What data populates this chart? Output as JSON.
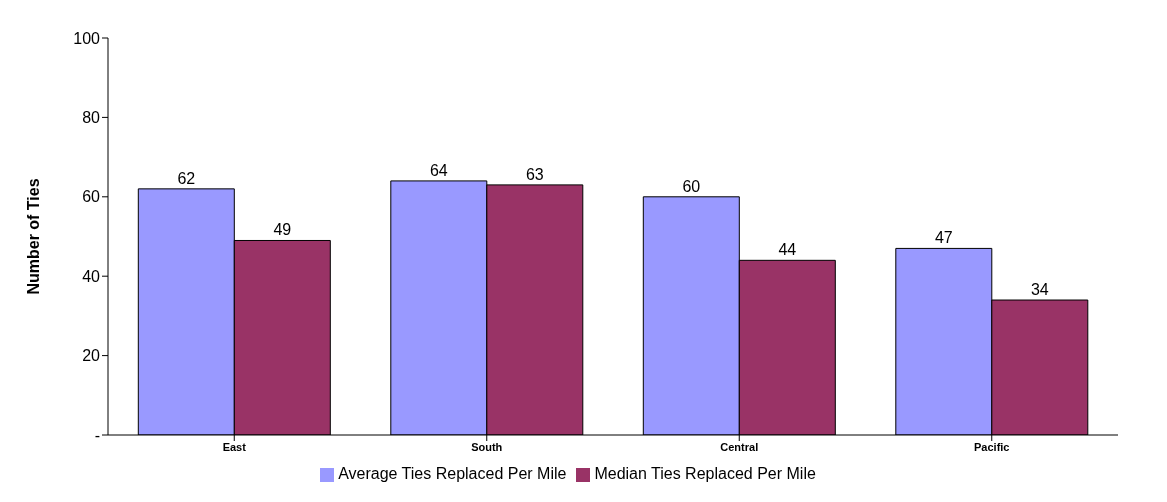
{
  "chart_data": {
    "type": "bar",
    "categories": [
      "East",
      "South",
      "Central",
      "Pacific"
    ],
    "series": [
      {
        "name": "Average Ties Replaced Per Mile",
        "color": "#9999ff",
        "values": [
          62,
          64,
          60,
          47
        ]
      },
      {
        "name": "Median Ties Replaced Per Mile",
        "color": "#993366",
        "values": [
          49,
          63,
          44,
          34
        ]
      }
    ],
    "ylabel": "Number of Ties",
    "ylim": [
      0,
      100
    ],
    "yticks": [
      {
        "value": 0,
        "label": "-"
      },
      20,
      40,
      60,
      80,
      100
    ],
    "data_labels": true,
    "legend": "bottom"
  }
}
